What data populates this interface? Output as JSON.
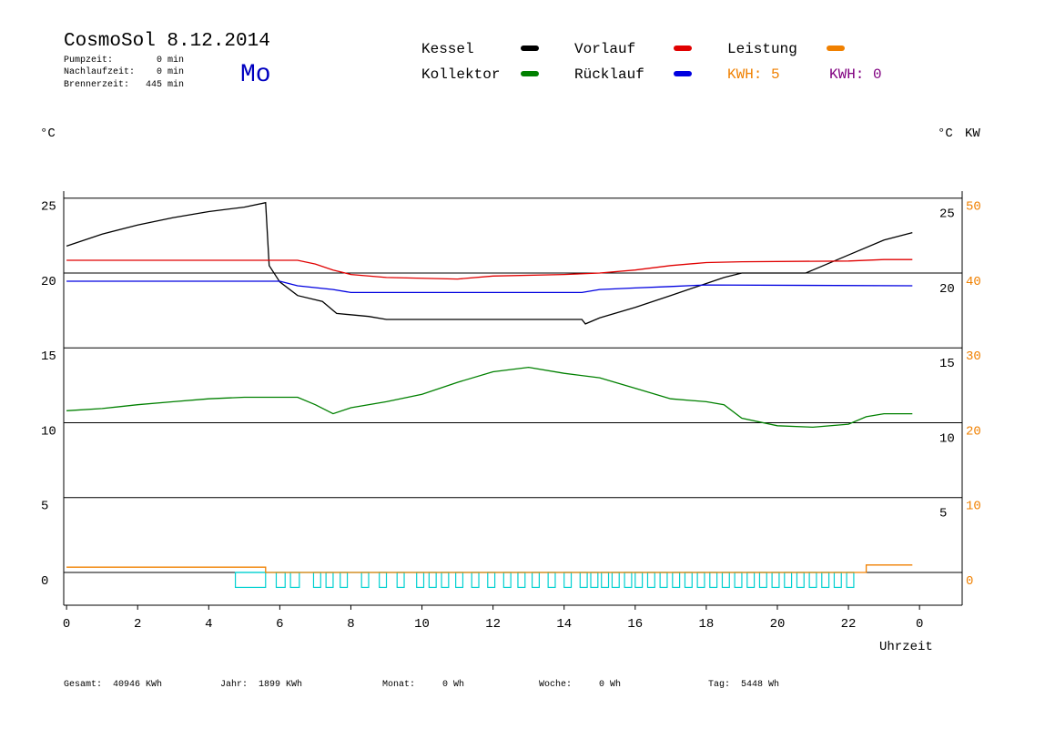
{
  "chart_data": {
    "type": "line",
    "title": "CosmoSol 8.12.2014",
    "weekday": "Mo",
    "status_lines": [
      "Pumpzeit:        0 min",
      "Nachlaufzeit:    0 min",
      "Brennerzeit:   445 min"
    ],
    "ylabel": "°C",
    "y_right_label": "°C",
    "y2label": "KW",
    "xlabel": "Uhrzeit",
    "xlim": [
      -0.08,
      25.2
    ],
    "xticks": [
      0,
      2,
      4,
      6,
      8,
      10,
      12,
      14,
      16,
      18,
      20,
      22,
      {
        "value": 24,
        "label": "0"
      }
    ],
    "ylim": [
      -2.19,
      25.47
    ],
    "yticks": [
      0,
      5,
      10,
      15,
      20,
      25
    ],
    "y_right_ticks": [
      5,
      10,
      15,
      20,
      25
    ],
    "y2lim": [
      -4.38,
      50.94
    ],
    "y2ticks": [
      0,
      10,
      20,
      30,
      40,
      50
    ],
    "y2color": "#f08000",
    "grid": true,
    "series": [
      {
        "name": "Kessel",
        "color": "#000000",
        "x": [
          0,
          1,
          2,
          3,
          4,
          5,
          5.6,
          5.7,
          6,
          6.5,
          7.2,
          7.6,
          8.5,
          9,
          14.5,
          14.6,
          15,
          16,
          17,
          18,
          18.5,
          19,
          20.8,
          21,
          22,
          23,
          23.8
        ],
        "values": [
          21.8,
          22.6,
          23.2,
          23.7,
          24.1,
          24.4,
          24.7,
          20.5,
          19.4,
          18.5,
          18.1,
          17.3,
          17.1,
          16.9,
          16.9,
          16.6,
          17.0,
          17.7,
          18.5,
          19.3,
          19.7,
          20.0,
          20.0,
          20.2,
          21.2,
          22.2,
          22.7
        ]
      },
      {
        "name": "Kollektor",
        "color": "#008000",
        "x": [
          0,
          1,
          2,
          3,
          4,
          5,
          6,
          6.5,
          7,
          7.5,
          8,
          9,
          10,
          11,
          12,
          13,
          14,
          15,
          16,
          17,
          18,
          18.5,
          19,
          20,
          21,
          22,
          22.5,
          23,
          23.8
        ],
        "values": [
          10.8,
          10.95,
          11.2,
          11.4,
          11.6,
          11.7,
          11.7,
          11.7,
          11.2,
          10.6,
          11.0,
          11.4,
          11.9,
          12.7,
          13.4,
          13.7,
          13.3,
          13.0,
          12.3,
          11.6,
          11.4,
          11.2,
          10.3,
          9.8,
          9.7,
          9.9,
          10.4,
          10.6,
          10.6
        ]
      },
      {
        "name": "Vorlauf",
        "color": "#e00000",
        "x": [
          0,
          6.5,
          7,
          7.5,
          8,
          9,
          11,
          12,
          14,
          15,
          16,
          17,
          18,
          19,
          22,
          23,
          23.8
        ],
        "values": [
          20.85,
          20.85,
          20.6,
          20.2,
          19.9,
          19.7,
          19.6,
          19.8,
          19.9,
          20.0,
          20.2,
          20.5,
          20.7,
          20.75,
          20.8,
          20.9,
          20.9
        ]
      },
      {
        "name": "Rücklauf",
        "color": "#0000e0",
        "x": [
          0,
          6,
          6.5,
          7.5,
          8,
          14.5,
          15,
          16,
          17,
          18,
          23.8
        ],
        "values": [
          19.45,
          19.45,
          19.15,
          18.9,
          18.7,
          18.7,
          18.9,
          19.0,
          19.1,
          19.2,
          19.15
        ]
      },
      {
        "name": "Leistung",
        "color": "#f08000",
        "axis": "y2",
        "x": [
          0,
          5.6,
          5.6,
          22.5,
          22.5,
          23.8
        ],
        "values": [
          0.7,
          0.7,
          0,
          0,
          1.0,
          1.0
        ]
      }
    ],
    "pump": {
      "color": "#00d0d0",
      "level": -1,
      "starts": [
        4.75,
        5.9,
        6.3,
        6.95,
        7.3,
        7.7,
        8.3,
        8.8,
        9.3,
        9.85,
        10.2,
        10.55,
        10.95,
        11.4,
        11.85,
        12.3,
        12.7,
        13.1,
        13.55,
        14.0,
        14.45,
        14.75,
        15.05,
        15.35,
        15.7,
        16.0,
        16.35,
        16.7,
        17.05,
        17.4,
        17.75,
        18.1,
        18.45,
        18.8,
        19.15,
        19.5,
        19.85,
        20.2,
        20.55,
        20.9,
        21.25,
        21.6,
        21.95
      ],
      "ends": [
        5.6,
        6.15,
        6.55,
        7.15,
        7.5,
        7.9,
        8.5,
        9.0,
        9.5,
        10.05,
        10.4,
        10.75,
        11.15,
        11.6,
        12.05,
        12.5,
        12.9,
        13.3,
        13.75,
        14.2,
        14.65,
        14.95,
        15.25,
        15.55,
        15.9,
        16.2,
        16.55,
        16.9,
        17.25,
        17.6,
        17.95,
        18.3,
        18.65,
        19.0,
        19.35,
        19.7,
        20.05,
        20.4,
        20.75,
        21.1,
        21.45,
        21.8,
        22.15
      ]
    },
    "kwh_labels": [
      {
        "text": "KWH: 5",
        "color": "#f08000"
      },
      {
        "text": "KWH: 0",
        "color": "#800080"
      }
    ],
    "footer": [
      "Gesamt:  40946 KWh",
      "Jahr:  1899 KWh",
      "Monat:     0 Wh",
      "Woche:     0 Wh",
      "Tag:  5448 Wh"
    ]
  }
}
